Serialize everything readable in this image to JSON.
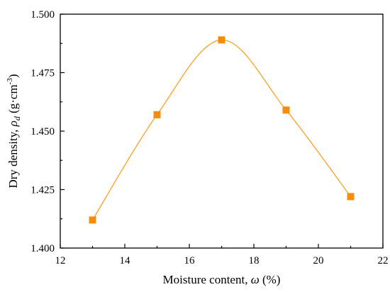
{
  "chart_data": {
    "type": "line",
    "xlabel": {
      "text": "Moisture content, ",
      "symbol": "ω",
      "suffix": " (%)"
    },
    "ylabel": {
      "text": "Dry density, ",
      "symbol": "ρ",
      "sub": "d",
      "suffix": " (g·cm",
      "sup": "-3",
      "close": ")"
    },
    "xlim": [
      12,
      22
    ],
    "ylim": [
      1.4,
      1.5
    ],
    "xticks": [
      "12",
      "14",
      "16",
      "18",
      "20",
      "22"
    ],
    "yticks": [
      "1.400",
      "1.425",
      "1.450",
      "1.475",
      "1.500"
    ],
    "grid": false,
    "series": [
      {
        "x": [
          13,
          15,
          17,
          19,
          21
        ],
        "y": [
          1.412,
          1.457,
          1.489,
          1.459,
          1.422
        ],
        "marker": "square",
        "smooth": true
      }
    ],
    "colors": {
      "series": "#f7a128",
      "marker": "#f78c0c",
      "axis": "#000000"
    }
  }
}
